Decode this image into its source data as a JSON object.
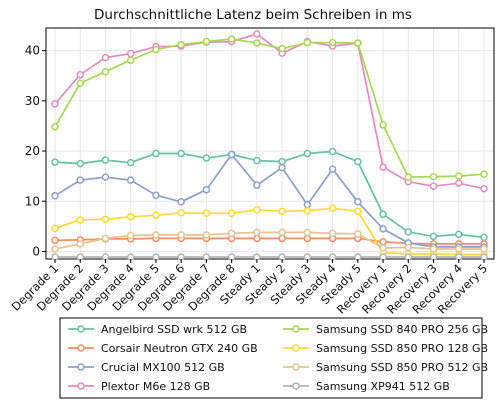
{
  "chart_data": {
    "type": "line",
    "title": "Durchschnittliche Latenz beim Schreiben in ms",
    "xlabel": "",
    "ylabel": "",
    "ylim": [
      -1.5,
      44.5
    ],
    "yticks": [
      0,
      10,
      20,
      30,
      40
    ],
    "grid": true,
    "legend_position": "bottom",
    "categories": [
      "Degrade 1",
      "Degrade 2",
      "Degrade 3",
      "Degrade 4",
      "Degrade 5",
      "Degrade 6",
      "Degrade 7",
      "Degrade 8",
      "Steady 1",
      "Steady 2",
      "Steady 3",
      "Steady 4",
      "Steady 5",
      "Recovery 1",
      "Recovery 2",
      "Recovery 3",
      "Recovery 4",
      "Recovery 5"
    ],
    "series": [
      {
        "name": "Angelbird SSD wrk 512 GB",
        "color": "#66c2a5",
        "values": [
          17.8,
          17.5,
          18.2,
          17.7,
          19.5,
          19.5,
          18.6,
          19.3,
          18.1,
          17.9,
          19.5,
          19.9,
          17.9,
          7.4,
          3.9,
          3.0,
          3.4,
          2.8
        ]
      },
      {
        "name": "Corsair Neutron GTX 240 GB",
        "color": "#fc8d62",
        "values": [
          2.2,
          2.3,
          2.5,
          2.5,
          2.6,
          2.6,
          2.6,
          2.6,
          2.6,
          2.6,
          2.6,
          2.6,
          2.6,
          1.9,
          1.6,
          1.5,
          1.5,
          1.5
        ]
      },
      {
        "name": "Crucial MX100 512 GB",
        "color": "#8da0cb",
        "values": [
          11.1,
          14.2,
          14.8,
          14.2,
          11.2,
          9.9,
          12.3,
          19.3,
          13.2,
          16.7,
          9.3,
          16.4,
          9.9,
          4.5,
          1.7,
          0.9,
          0.9,
          0.9
        ]
      },
      {
        "name": "Plextor M6e 128 GB",
        "color": "#e78ac3",
        "values": [
          29.4,
          35.2,
          38.6,
          39.4,
          40.8,
          40.9,
          41.7,
          41.8,
          43.3,
          39.5,
          41.8,
          40.9,
          41.5,
          16.8,
          13.9,
          13.0,
          13.6,
          12.5
        ]
      },
      {
        "name": "Samsung SSD 840 PRO 256 GB",
        "color": "#a6d854",
        "values": [
          24.8,
          33.5,
          35.8,
          38.1,
          40.2,
          41.2,
          41.8,
          42.3,
          41.5,
          40.4,
          41.6,
          41.6,
          41.5,
          25.2,
          14.8,
          14.9,
          15.0,
          15.4
        ]
      },
      {
        "name": "Samsung SSD 850 PRO 128 GB",
        "color": "#ffd92f",
        "values": [
          4.6,
          6.3,
          6.4,
          6.9,
          7.2,
          7.7,
          7.6,
          7.6,
          8.3,
          8.0,
          8.1,
          8.6,
          8.0,
          -0.2,
          -0.5,
          -0.5,
          -0.6,
          -0.6
        ]
      },
      {
        "name": "Samsung SSD 850 PRO 512 GB",
        "color": "#e5c494",
        "values": [
          0.5,
          1.5,
          2.6,
          3.2,
          3.3,
          3.3,
          3.3,
          3.6,
          3.8,
          3.8,
          3.8,
          3.6,
          3.5,
          0.7,
          0.8,
          0.5,
          0.5,
          0.5
        ]
      },
      {
        "name": "Samsung XP941 512 GB",
        "color": "#b3b3b3",
        "values": [
          -1.1,
          -1.1,
          -1.1,
          -1.1,
          -1.1,
          -1.1,
          -1.1,
          -1.1,
          -1.1,
          -1.1,
          -1.1,
          -1.1,
          -1.1,
          -1.1,
          -1.1,
          -1.1,
          -1.1,
          -1.1
        ]
      }
    ]
  }
}
